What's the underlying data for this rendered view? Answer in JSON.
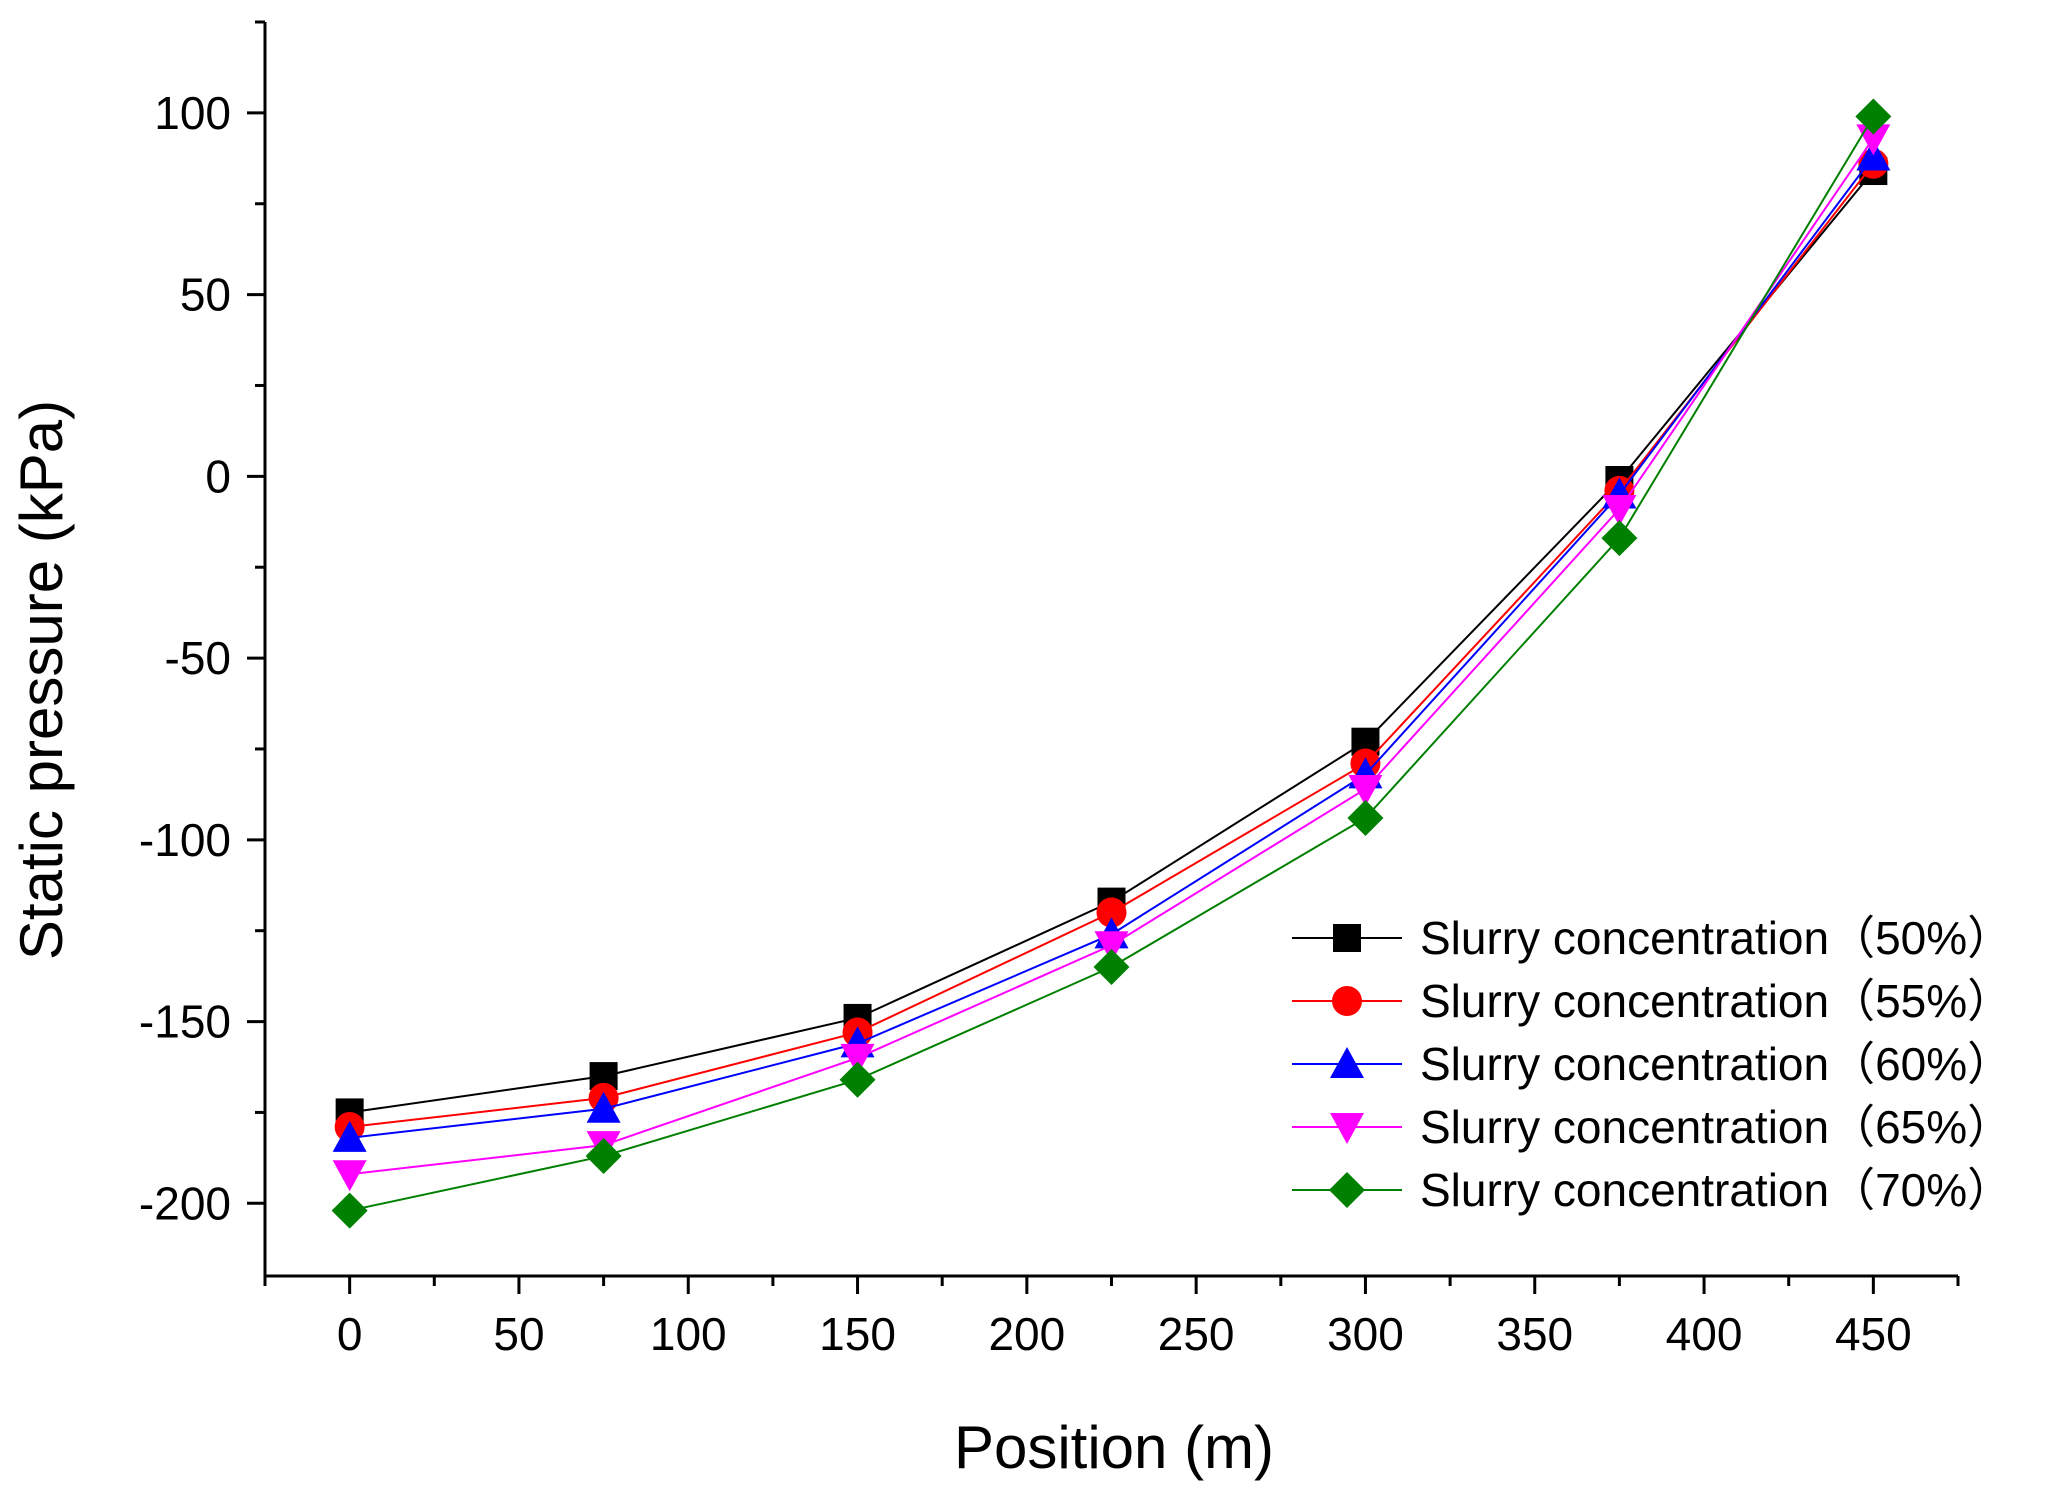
{
  "chart_data": {
    "type": "line",
    "title": "",
    "xlabel": "Position (m)",
    "ylabel": "Static pressure (kPa)",
    "xlim": [
      -25,
      475
    ],
    "ylim": [
      -220,
      125
    ],
    "xticks": [
      0,
      50,
      100,
      150,
      200,
      250,
      300,
      350,
      400,
      450
    ],
    "yticks": [
      -200,
      -150,
      -100,
      -50,
      0,
      50,
      100
    ],
    "x": [
      0,
      75,
      150,
      225,
      300,
      375,
      450
    ],
    "grid": false,
    "legend_position": "lower-right",
    "series": [
      {
        "name": "Slurry concentration（50%）",
        "color": "#000000",
        "marker": "square",
        "values": [
          -175,
          -165,
          -149,
          -117,
          -73,
          -1,
          84
        ]
      },
      {
        "name": "Slurry concentration（55%）",
        "color": "#ff0000",
        "marker": "circle",
        "values": [
          -179,
          -171,
          -153,
          -120,
          -79,
          -4,
          86
        ]
      },
      {
        "name": "Slurry concentration（60%）",
        "color": "#0000ff",
        "marker": "triangle-up",
        "values": [
          -182,
          -174,
          -156,
          -126,
          -82,
          -5,
          88
        ]
      },
      {
        "name": "Slurry concentration（65%）",
        "color": "#ff00ff",
        "marker": "triangle-down",
        "values": [
          -192,
          -184,
          -160,
          -129,
          -86,
          -9,
          93
        ]
      },
      {
        "name": "Slurry concentration（70%）",
        "color": "#008000",
        "marker": "diamond",
        "values": [
          -202,
          -187,
          -166,
          -135,
          -94,
          -17,
          99
        ]
      }
    ]
  }
}
